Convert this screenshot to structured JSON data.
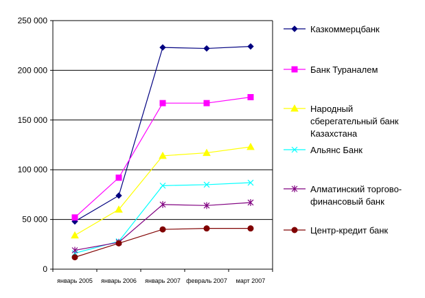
{
  "chart_data": {
    "type": "line",
    "title": "",
    "xlabel": "",
    "ylabel": "",
    "categories": [
      "январь 2005",
      "январь 2006",
      "январь 2007",
      "февраль 2007",
      "март 2007"
    ],
    "ylim": [
      0,
      250000
    ],
    "yticks": [
      0,
      50000,
      100000,
      150000,
      200000,
      250000
    ],
    "ytick_labels": [
      "0",
      "50 000",
      "100 000",
      "150 000",
      "200 000",
      "250 000"
    ],
    "grid": "horizontal",
    "legend_position": "right",
    "series": [
      {
        "name": "Казкоммерцбанк",
        "legend_lines": [
          "Казкоммерцбанк"
        ],
        "color": "#000080",
        "marker": "diamond",
        "values": [
          48000,
          74000,
          223000,
          222000,
          224000
        ]
      },
      {
        "name": "Банк Туранaлем",
        "legend_lines": [
          "Банк Туранaлем"
        ],
        "color": "#FF00FF",
        "marker": "square",
        "values": [
          52000,
          92000,
          167000,
          167000,
          173000
        ]
      },
      {
        "name": "Народный сберегательный банк Казахстана",
        "legend_lines": [
          "Народный",
          "сберегательный банк",
          "Казахстана"
        ],
        "color": "#FFFF00",
        "marker": "triangle",
        "values": [
          34000,
          60000,
          114000,
          117000,
          123000
        ]
      },
      {
        "name": "Альянс Банк",
        "legend_lines": [
          "Альянс Банк"
        ],
        "color": "#00FFFF",
        "marker": "x",
        "values": [
          16000,
          28000,
          84000,
          85000,
          87000
        ]
      },
      {
        "name": "Алматинский торгово-финансовый банк",
        "legend_lines": [
          "Алматинский торгово-",
          "финансовый банк"
        ],
        "color": "#800080",
        "marker": "star",
        "values": [
          19000,
          27000,
          65000,
          64000,
          67000
        ]
      },
      {
        "name": "Центр-кредит банк",
        "legend_lines": [
          "Центр-кредит банк"
        ],
        "color": "#800000",
        "marker": "circle",
        "values": [
          12000,
          26000,
          40000,
          41000,
          41000
        ]
      }
    ]
  }
}
